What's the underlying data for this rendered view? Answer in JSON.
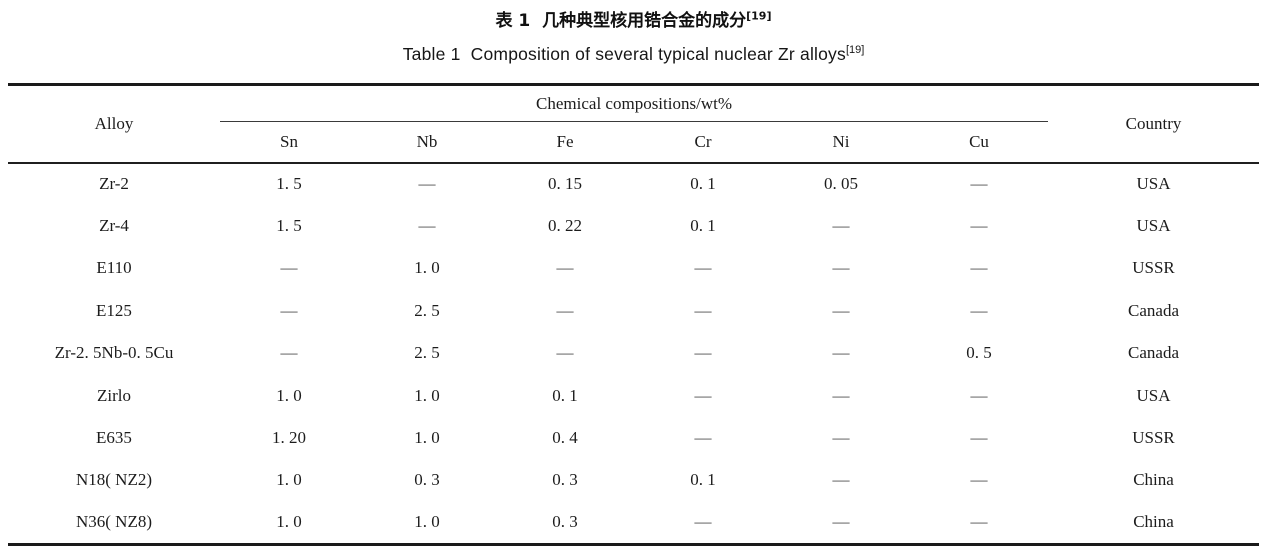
{
  "page": {
    "title_zh": "表 1  几种典型核用锆合金的成分",
    "title_zh_ref": "[19]",
    "title_en": "Table 1  Composition of several typical nuclear Zr alloys",
    "title_en_ref": "[19]"
  },
  "table": {
    "alloy_header": "Alloy",
    "group_header": "Chemical compositions/wt%",
    "country_header": "Country",
    "element_headers": [
      "Sn",
      "Nb",
      "Fe",
      "Cr",
      "Ni",
      "Cu"
    ],
    "rows": [
      {
        "alloy": "Zr-2",
        "values": [
          "1. 5",
          "—",
          "0. 15",
          "0. 1",
          "0. 05",
          "—"
        ],
        "country": "USA"
      },
      {
        "alloy": "Zr-4",
        "values": [
          "1. 5",
          "—",
          "0. 22",
          "0. 1",
          "—",
          "—"
        ],
        "country": "USA"
      },
      {
        "alloy": "E110",
        "values": [
          "—",
          "1. 0",
          "—",
          "—",
          "—",
          "—"
        ],
        "country": "USSR"
      },
      {
        "alloy": "E125",
        "values": [
          "—",
          "2. 5",
          "—",
          "—",
          "—",
          "—"
        ],
        "country": "Canada"
      },
      {
        "alloy": "Zr-2. 5Nb-0. 5Cu",
        "values": [
          "—",
          "2. 5",
          "—",
          "—",
          "—",
          "0. 5"
        ],
        "country": "Canada"
      },
      {
        "alloy": "Zirlo",
        "values": [
          "1. 0",
          "1. 0",
          "0. 1",
          "—",
          "—",
          "—"
        ],
        "country": "USA"
      },
      {
        "alloy": "E635",
        "values": [
          "1. 20",
          "1. 0",
          "0. 4",
          "—",
          "—",
          "—"
        ],
        "country": "USSR"
      },
      {
        "alloy": "N18( NZ2)",
        "values": [
          "1. 0",
          "0. 3",
          "0. 3",
          "0. 1",
          "—",
          "—"
        ],
        "country": "China"
      },
      {
        "alloy": "N36( NZ8)",
        "values": [
          "1. 0",
          "1. 0",
          "0. 3",
          "—",
          "—",
          "—"
        ],
        "country": "China"
      }
    ]
  }
}
